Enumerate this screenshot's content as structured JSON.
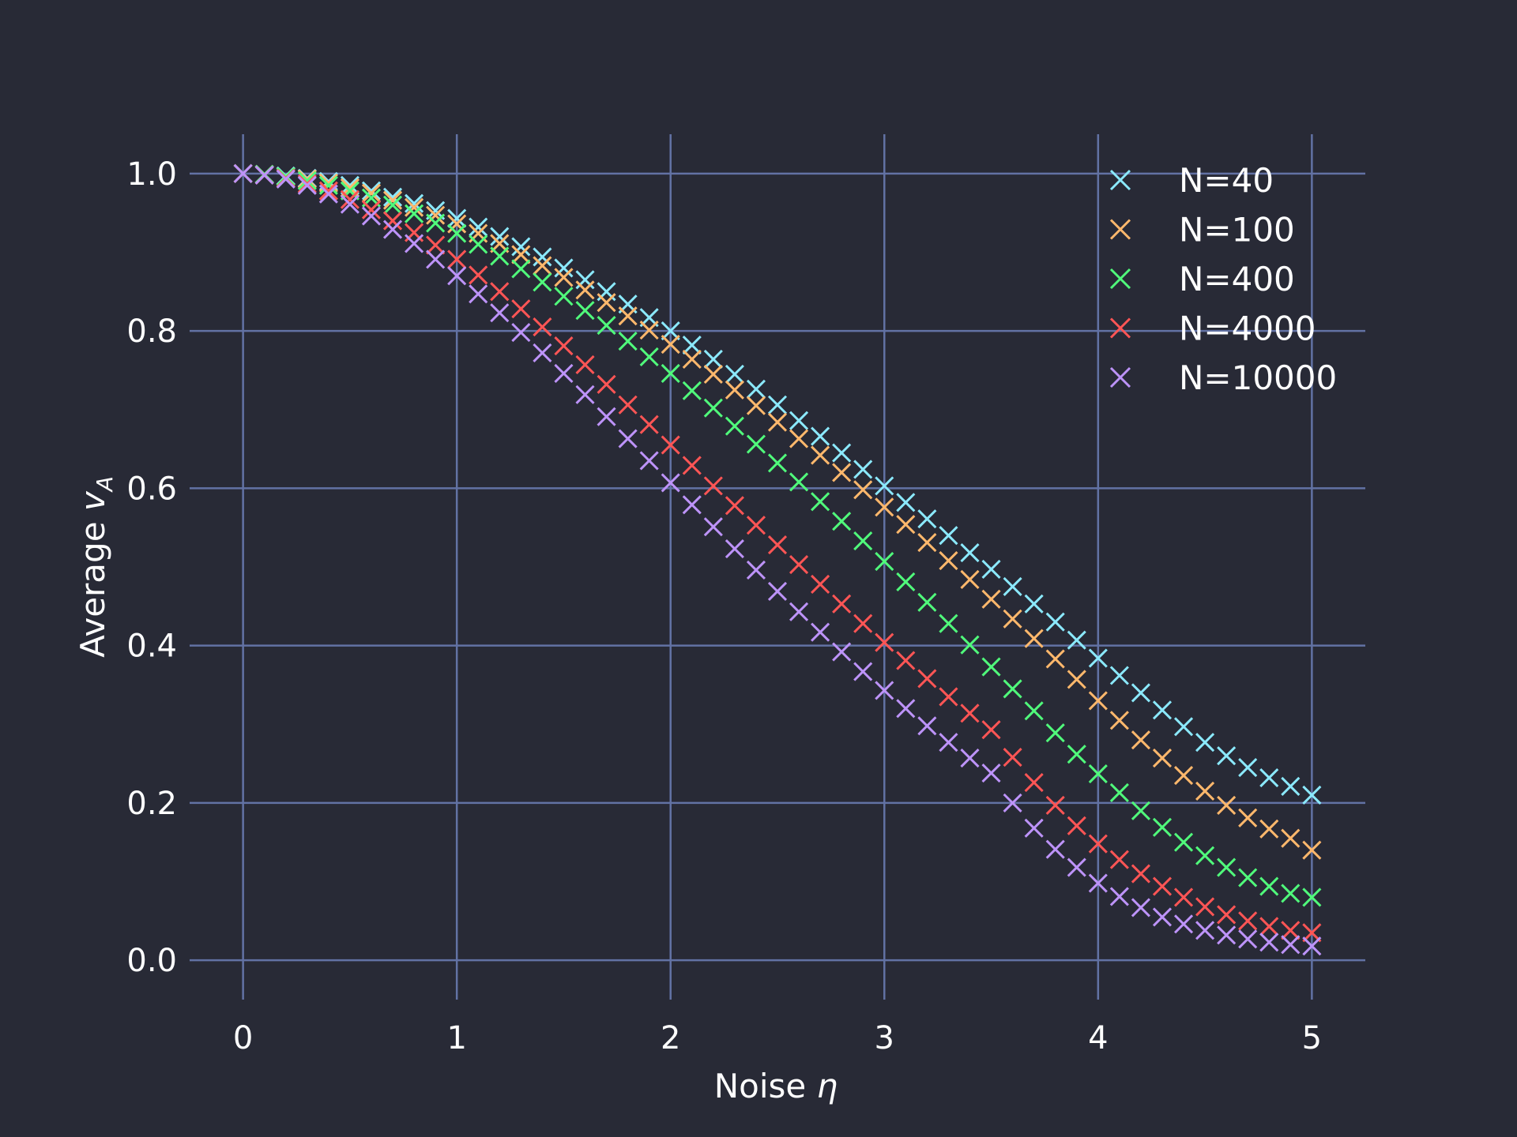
{
  "chart_data": {
    "type": "scatter",
    "marker": "x",
    "xlabel_text": "Noise ",
    "xlabel_symbol": "η",
    "ylabel_text": "Average ",
    "ylabel_symbol": "v",
    "ylabel_subscript": "A",
    "xlim": [
      -0.25,
      5.25
    ],
    "ylim": [
      -0.05,
      1.05
    ],
    "x_ticks": [
      0,
      1,
      2,
      3,
      4,
      5
    ],
    "x_tick_labels": [
      "0",
      "1",
      "2",
      "3",
      "4",
      "5"
    ],
    "y_ticks": [
      0.0,
      0.2,
      0.4,
      0.6,
      0.8,
      1.0
    ],
    "y_tick_labels": [
      "0.0",
      "0.2",
      "0.4",
      "0.6",
      "0.8",
      "1.0"
    ],
    "grid": true,
    "legend_position": "top-right",
    "x": [
      0.0,
      0.1,
      0.2,
      0.3,
      0.4,
      0.5,
      0.6,
      0.7,
      0.8,
      0.9,
      1.0,
      1.1,
      1.2,
      1.3,
      1.4,
      1.5,
      1.6,
      1.7,
      1.8,
      1.9,
      2.0,
      2.1,
      2.2,
      2.3,
      2.4,
      2.5,
      2.6,
      2.7,
      2.8,
      2.9,
      3.0,
      3.1,
      3.2,
      3.3,
      3.4,
      3.5,
      3.6,
      3.7,
      3.8,
      3.9,
      4.0,
      4.1,
      4.2,
      4.3,
      4.4,
      4.5,
      4.6,
      4.7,
      4.8,
      4.9,
      5.0
    ],
    "series": [
      {
        "name": "N=40",
        "color": "#8be9fd",
        "values": [
          1.0,
          0.999,
          0.997,
          0.994,
          0.99,
          0.985,
          0.978,
          0.97,
          0.962,
          0.953,
          0.943,
          0.932,
          0.92,
          0.907,
          0.894,
          0.88,
          0.865,
          0.85,
          0.834,
          0.817,
          0.8,
          0.782,
          0.764,
          0.745,
          0.726,
          0.706,
          0.686,
          0.666,
          0.645,
          0.624,
          0.603,
          0.582,
          0.561,
          0.54,
          0.518,
          0.497,
          0.475,
          0.453,
          0.43,
          0.407,
          0.384,
          0.362,
          0.34,
          0.318,
          0.297,
          0.277,
          0.26,
          0.245,
          0.232,
          0.221,
          0.21
        ]
      },
      {
        "name": "N=100",
        "color": "#ffb86c",
        "values": [
          1.0,
          0.999,
          0.996,
          0.993,
          0.988,
          0.982,
          0.975,
          0.966,
          0.957,
          0.947,
          0.936,
          0.924,
          0.911,
          0.897,
          0.883,
          0.868,
          0.852,
          0.836,
          0.819,
          0.801,
          0.783,
          0.764,
          0.745,
          0.725,
          0.705,
          0.684,
          0.663,
          0.642,
          0.62,
          0.598,
          0.576,
          0.554,
          0.531,
          0.508,
          0.484,
          0.459,
          0.434,
          0.409,
          0.383,
          0.357,
          0.33,
          0.305,
          0.28,
          0.257,
          0.235,
          0.215,
          0.197,
          0.181,
          0.167,
          0.155,
          0.14
        ]
      },
      {
        "name": "N=400",
        "color": "#50fa7b",
        "values": [
          1.0,
          0.999,
          0.996,
          0.991,
          0.985,
          0.978,
          0.969,
          0.96,
          0.949,
          0.937,
          0.924,
          0.91,
          0.895,
          0.879,
          0.862,
          0.844,
          0.826,
          0.807,
          0.787,
          0.767,
          0.746,
          0.724,
          0.702,
          0.679,
          0.656,
          0.632,
          0.608,
          0.583,
          0.558,
          0.533,
          0.507,
          0.481,
          0.455,
          0.428,
          0.401,
          0.373,
          0.345,
          0.317,
          0.289,
          0.262,
          0.237,
          0.213,
          0.19,
          0.169,
          0.15,
          0.133,
          0.118,
          0.105,
          0.094,
          0.085,
          0.08
        ]
      },
      {
        "name": "N=4000",
        "color": "#ff5555",
        "values": [
          1.0,
          0.998,
          0.994,
          0.987,
          0.978,
          0.967,
          0.954,
          0.94,
          0.925,
          0.909,
          0.891,
          0.871,
          0.85,
          0.828,
          0.805,
          0.781,
          0.757,
          0.732,
          0.706,
          0.681,
          0.655,
          0.629,
          0.603,
          0.578,
          0.553,
          0.528,
          0.503,
          0.478,
          0.453,
          0.428,
          0.404,
          0.381,
          0.358,
          0.335,
          0.314,
          0.293,
          0.258,
          0.226,
          0.197,
          0.171,
          0.148,
          0.128,
          0.11,
          0.094,
          0.08,
          0.068,
          0.058,
          0.05,
          0.043,
          0.038,
          0.035
        ]
      },
      {
        "name": "N=10000",
        "color": "#bd93f9",
        "values": [
          1.0,
          0.998,
          0.993,
          0.985,
          0.974,
          0.961,
          0.946,
          0.929,
          0.911,
          0.891,
          0.87,
          0.847,
          0.823,
          0.798,
          0.772,
          0.746,
          0.719,
          0.691,
          0.663,
          0.635,
          0.607,
          0.579,
          0.551,
          0.523,
          0.496,
          0.469,
          0.443,
          0.417,
          0.392,
          0.367,
          0.343,
          0.32,
          0.298,
          0.277,
          0.257,
          0.238,
          0.2,
          0.168,
          0.141,
          0.118,
          0.098,
          0.081,
          0.067,
          0.055,
          0.046,
          0.038,
          0.032,
          0.027,
          0.023,
          0.02,
          0.018
        ]
      }
    ]
  }
}
